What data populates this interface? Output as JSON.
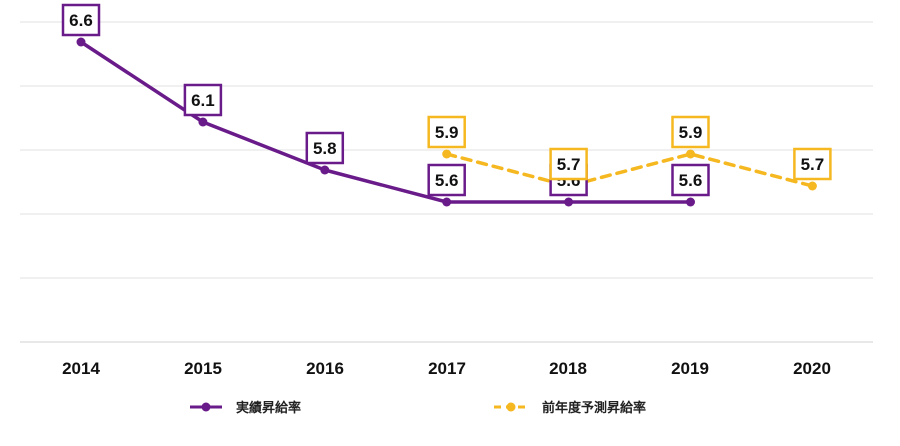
{
  "chart_data": {
    "type": "line",
    "title": "",
    "xlabel": "",
    "ylabel": "",
    "ylim": [
      4.0,
      7.0
    ],
    "categories": [
      "2014",
      "2015",
      "2016",
      "2017",
      "2018",
      "2019",
      "2020"
    ],
    "series": [
      {
        "name": "実績昇給率",
        "color": "#6a1b8a",
        "style": "solid",
        "values": [
          6.6,
          6.1,
          5.8,
          5.6,
          5.6,
          5.6,
          null
        ],
        "labels": [
          "6.6",
          "6.1",
          "5.8",
          "5.6",
          "5.6",
          "5.6",
          null
        ]
      },
      {
        "name": "前年度予測昇給率",
        "color": "#f5b820",
        "style": "dashed",
        "values": [
          null,
          null,
          null,
          5.9,
          5.7,
          5.9,
          5.7
        ],
        "labels": [
          null,
          null,
          null,
          "5.9",
          "5.7",
          "5.9",
          "5.7"
        ]
      }
    ],
    "grid": true,
    "legend": "bottom"
  }
}
